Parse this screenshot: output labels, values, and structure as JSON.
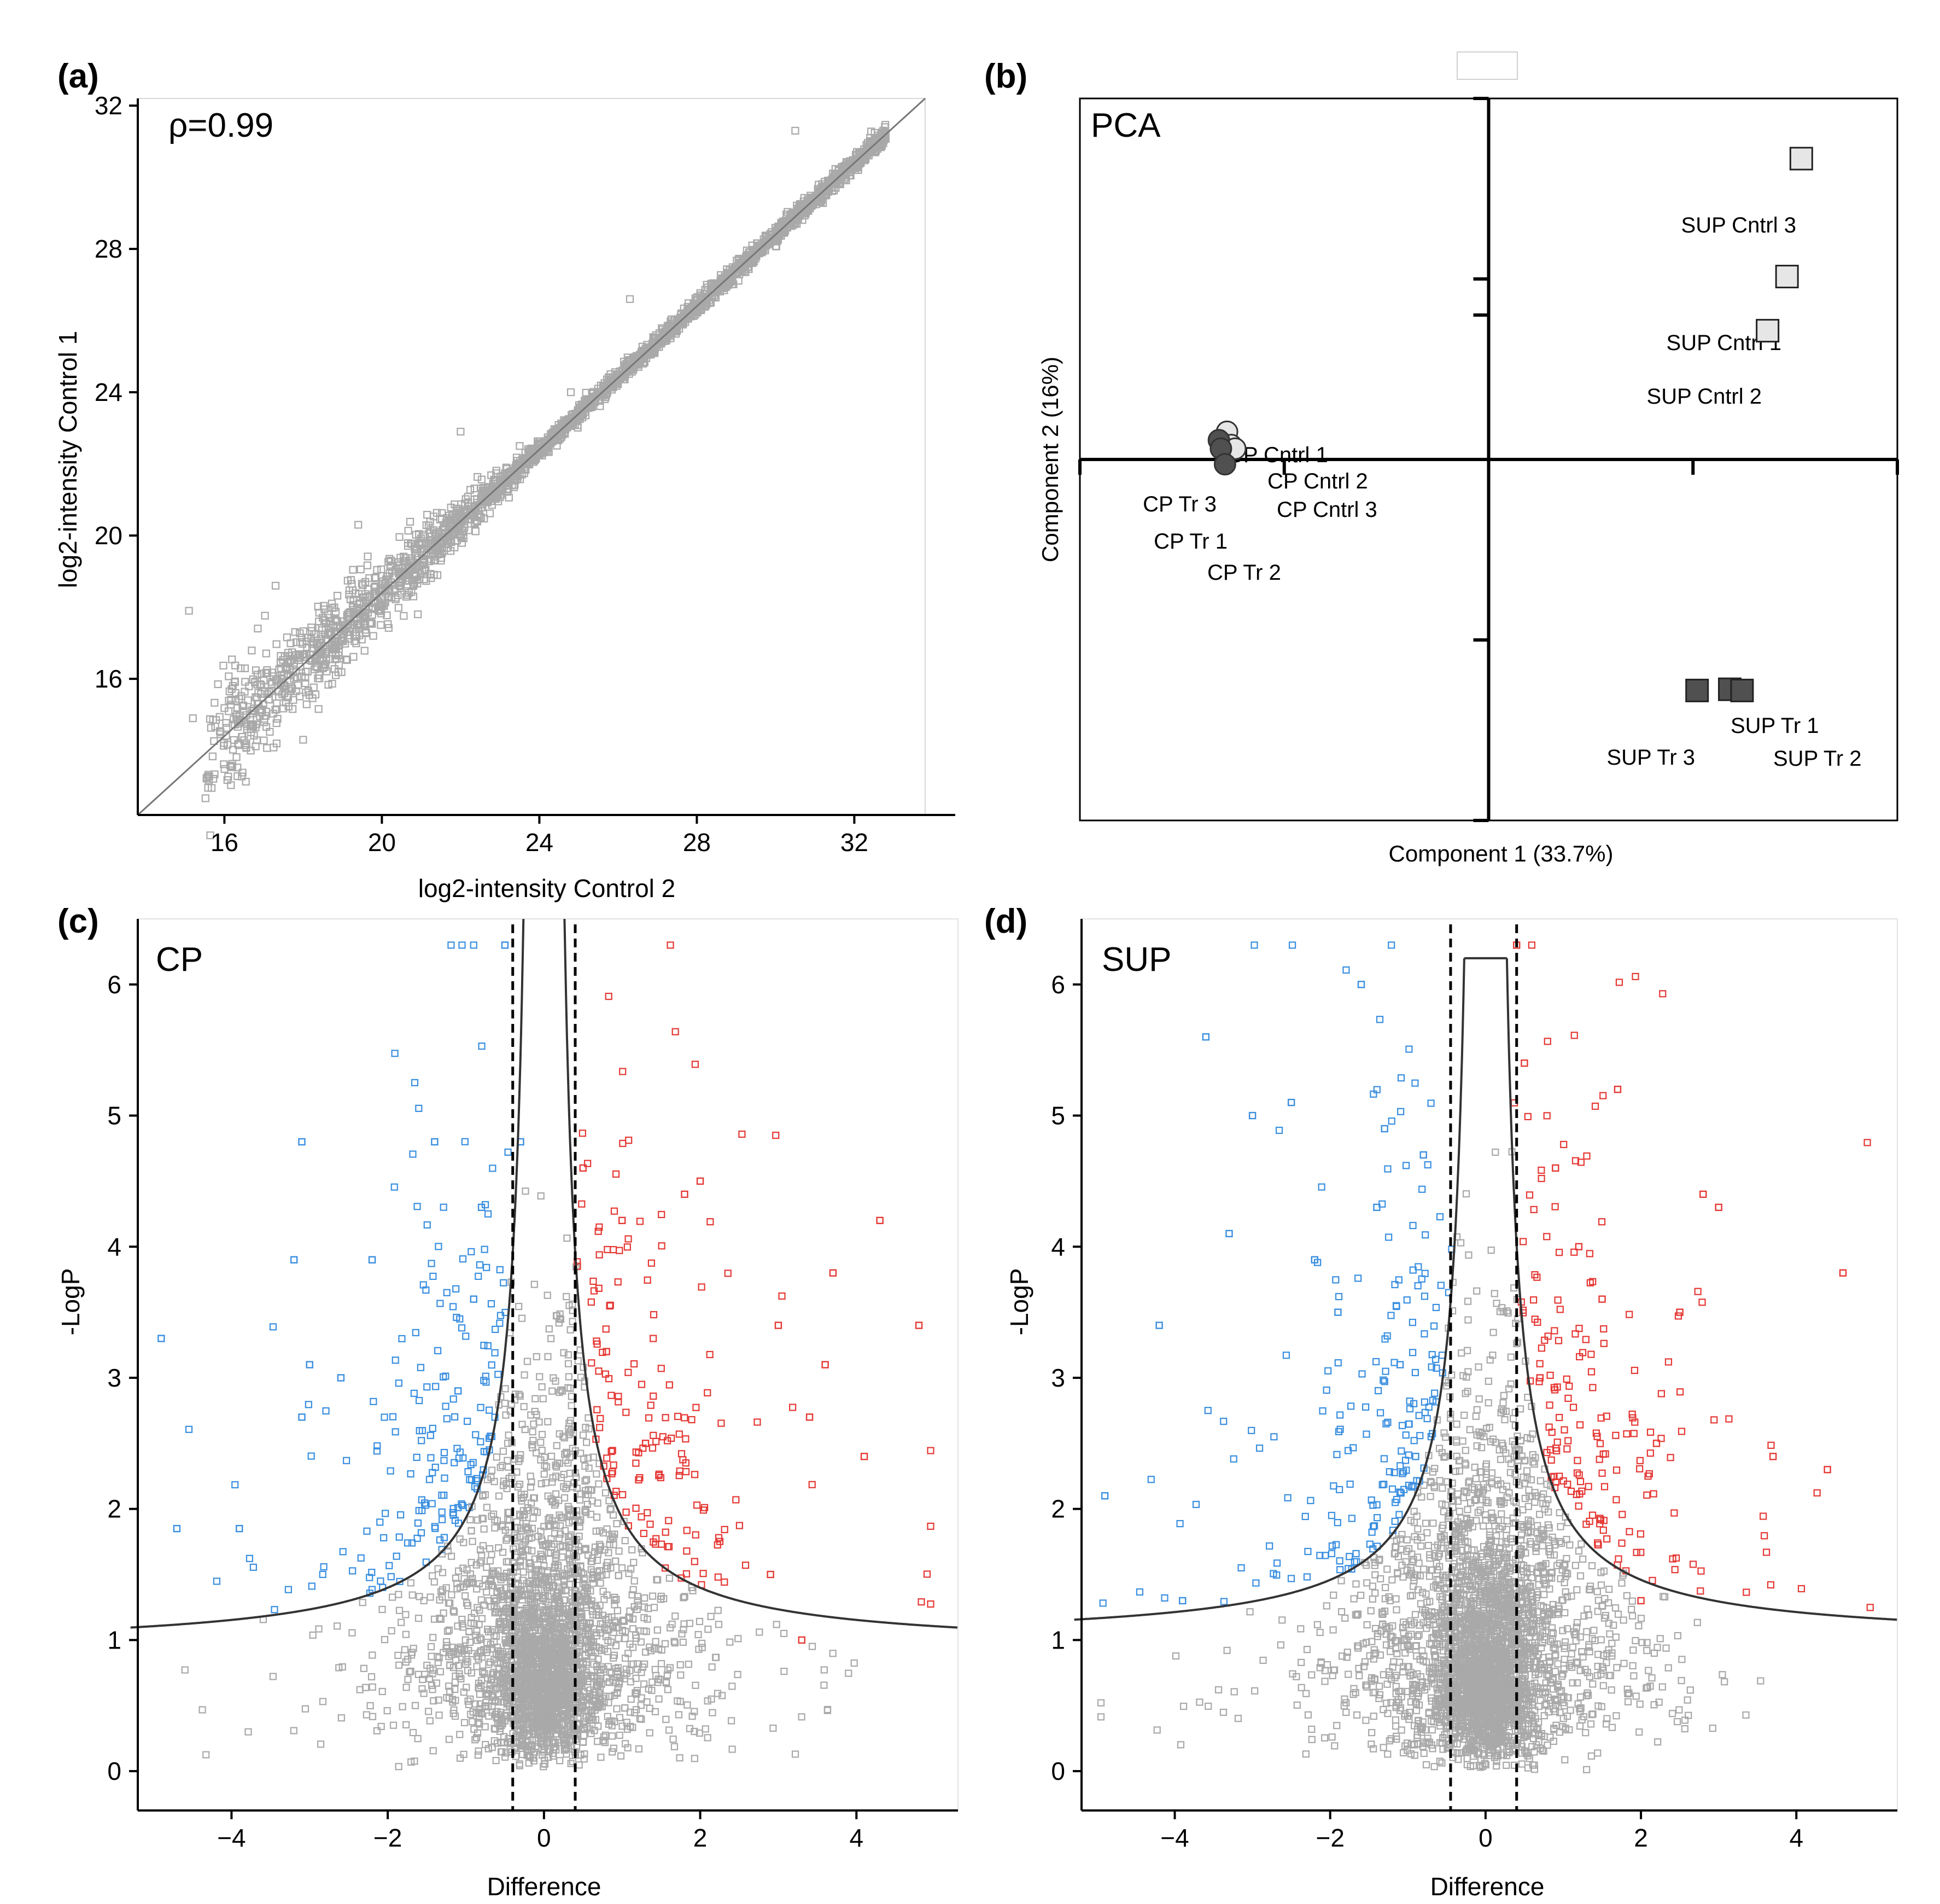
{
  "figure": {
    "panel_letters": [
      "(a)",
      "(b)",
      "(c)",
      "(d)"
    ]
  },
  "chart_data": [
    {
      "id": "a",
      "type": "scatter",
      "title": "",
      "annotation": "ρ=0.99",
      "xlabel": "log2-intensity Control 2",
      "ylabel": "log2-intensity Control 1",
      "xlim": [
        13.8,
        33.8
      ],
      "ylim": [
        12.2,
        32.2
      ],
      "xticks": [
        16,
        20,
        24,
        28,
        32
      ],
      "yticks": [
        16,
        20,
        24,
        28,
        32
      ],
      "point_color": "#a9a9a9",
      "line_color": "#777777",
      "fit_line": [
        [
          13.8,
          12.2
        ],
        [
          33.8,
          32.2
        ]
      ],
      "sample_points": [
        [
          15.1,
          17.9
        ],
        [
          15.2,
          14.9
        ],
        [
          16.6,
          15.4
        ],
        [
          17.3,
          18.6
        ],
        [
          18.4,
          17.6
        ],
        [
          18.0,
          14.3
        ],
        [
          22.0,
          22.9
        ],
        [
          21.5,
          19.3
        ],
        [
          19.4,
          20.3
        ],
        [
          30.5,
          31.3
        ],
        [
          32.4,
          31.1
        ],
        [
          24.8,
          24.0
        ],
        [
          20.8,
          18.3
        ],
        [
          23.5,
          22.5
        ],
        [
          26.3,
          26.6
        ]
      ]
    },
    {
      "id": "b",
      "type": "scatter",
      "title": "PCA",
      "xlabel": "Component 1 (33.7%)",
      "ylabel": "Component 2 (16%)",
      "xlim": [
        -40,
        40
      ],
      "ylim": [
        -30,
        30
      ],
      "points": [
        {
          "label": "CP Cntrl 1",
          "x": -25.6,
          "y": 2.3,
          "group": "CP Control",
          "marker": "circle",
          "color": "#e6e6e6"
        },
        {
          "label": "CP Cntrl 2",
          "x": -25.2,
          "y": 1.2,
          "group": "CP Control",
          "marker": "circle",
          "color": "#e6e6e6"
        },
        {
          "label": "CP Cntrl 3",
          "x": -24.8,
          "y": 0.9,
          "group": "CP Control",
          "marker": "circle",
          "color": "#e6e6e6"
        },
        {
          "label": "CP Tr 3",
          "x": -26.4,
          "y": 1.6,
          "group": "CP Treated",
          "marker": "circle",
          "color": "#505050"
        },
        {
          "label": "CP Tr 1",
          "x": -26.2,
          "y": 0.9,
          "group": "CP Treated",
          "marker": "circle",
          "color": "#505050"
        },
        {
          "label": "CP Tr 2",
          "x": -25.8,
          "y": -0.4,
          "group": "CP Treated",
          "marker": "circle",
          "color": "#505050"
        },
        {
          "label": "SUP Cntrl 3",
          "x": 30.6,
          "y": 25.0,
          "group": "SUP Control",
          "marker": "square",
          "color": "#e6e6e6"
        },
        {
          "label": "SUP Cntrl 1",
          "x": 29.2,
          "y": 15.2,
          "group": "SUP Control",
          "marker": "square",
          "color": "#e6e6e6"
        },
        {
          "label": "SUP Cntrl 2",
          "x": 27.3,
          "y": 10.7,
          "group": "SUP Control",
          "marker": "square",
          "color": "#e6e6e6"
        },
        {
          "label": "SUP Tr 1",
          "x": 23.6,
          "y": -19.1,
          "group": "SUP Treated",
          "marker": "square",
          "color": "#505050"
        },
        {
          "label": "SUP Tr 3",
          "x": 20.4,
          "y": -19.2,
          "group": "SUP Treated",
          "marker": "square",
          "color": "#505050"
        },
        {
          "label": "SUP Tr 2",
          "x": 24.8,
          "y": -19.2,
          "group": "SUP Treated",
          "marker": "square",
          "color": "#505050"
        }
      ]
    },
    {
      "id": "c",
      "type": "scatter",
      "title": "CP",
      "xlabel": "Difference",
      "ylabel": "-LogP",
      "xlim": [
        -5.2,
        5.3
      ],
      "ylim": [
        -0.3,
        6.5
      ],
      "xticks": [
        -4,
        -2,
        0,
        2,
        4
      ],
      "yticks": [
        0,
        1,
        2,
        3,
        4,
        5,
        6
      ],
      "fold_change_cutoffs": [
        -0.4,
        0.4
      ],
      "colors": {
        "down": "#3a8fe0",
        "up": "#e53935",
        "ns": "#a9a9a9"
      },
      "threshold_curve": {
        "s0": 0.1,
        "c": 0.91,
        "baseline": 0.92
      },
      "highlighted_points": [
        {
          "x": -4.9,
          "y": 3.3,
          "group": "down"
        },
        {
          "x": -4.7,
          "y": 1.85,
          "group": "down"
        },
        {
          "x": -3.9,
          "y": 1.85,
          "group": "down"
        },
        {
          "x": -3.1,
          "y": 4.8,
          "group": "down"
        },
        {
          "x": -3.2,
          "y": 3.9,
          "group": "down"
        },
        {
          "x": -3.0,
          "y": 3.1,
          "group": "down"
        },
        {
          "x": -3.1,
          "y": 2.7,
          "group": "down"
        },
        {
          "x": -2.6,
          "y": 3.0,
          "group": "down"
        },
        {
          "x": -2.2,
          "y": 3.9,
          "group": "down"
        },
        {
          "x": -1.4,
          "y": 4.8,
          "group": "down"
        },
        {
          "x": -0.8,
          "y": 4.3,
          "group": "down"
        },
        {
          "x": -0.5,
          "y": 6.3,
          "group": "down"
        },
        {
          "x": -0.3,
          "y": 4.8,
          "group": "down"
        },
        {
          "x": -0.9,
          "y": 3.6,
          "group": "down"
        },
        {
          "x": -1.1,
          "y": 2.9,
          "group": "down"
        },
        {
          "x": 0.5,
          "y": 4.6,
          "group": "up"
        },
        {
          "x": 1.0,
          "y": 4.2,
          "group": "up"
        },
        {
          "x": 2.0,
          "y": 4.5,
          "group": "up"
        },
        {
          "x": 1.8,
          "y": 4.4,
          "group": "up"
        },
        {
          "x": 4.3,
          "y": 4.2,
          "group": "up"
        },
        {
          "x": 4.8,
          "y": 3.4,
          "group": "up"
        },
        {
          "x": 3.0,
          "y": 3.4,
          "group": "up"
        },
        {
          "x": 3.7,
          "y": 3.8,
          "group": "up"
        },
        {
          "x": 3.6,
          "y": 3.1,
          "group": "up"
        },
        {
          "x": 4.1,
          "y": 2.4,
          "group": "up"
        },
        {
          "x": 3.4,
          "y": 2.7,
          "group": "up"
        },
        {
          "x": 3.3,
          "y": 1.0,
          "group": "up"
        },
        {
          "x": 2.9,
          "y": 1.5,
          "group": "up"
        },
        {
          "x": 1.3,
          "y": 2.5,
          "group": "up"
        },
        {
          "x": 0.8,
          "y": 3.2,
          "group": "up"
        }
      ]
    },
    {
      "id": "d",
      "type": "scatter",
      "title": "SUP",
      "xlabel": "Difference",
      "ylabel": "-LogP",
      "xlim": [
        -5.2,
        5.3
      ],
      "ylim": [
        -0.3,
        6.5
      ],
      "xticks": [
        -4,
        -2,
        0,
        2,
        4
      ],
      "yticks": [
        0,
        1,
        2,
        3,
        4,
        5,
        6
      ],
      "fold_change_cutoffs": [
        -0.45,
        0.4
      ],
      "colors": {
        "down": "#3a8fe0",
        "up": "#e53935",
        "ns": "#a9a9a9"
      },
      "threshold_curve": {
        "s0": 0.1,
        "c": 0.91,
        "baseline": 0.98,
        "cap": 6.2
      },
      "highlighted_points": [
        {
          "x": -4.9,
          "y": 2.1,
          "group": "down"
        },
        {
          "x": -4.2,
          "y": 3.4,
          "group": "down"
        },
        {
          "x": -3.6,
          "y": 5.6,
          "group": "down"
        },
        {
          "x": -3.3,
          "y": 4.1,
          "group": "down"
        },
        {
          "x": -3.0,
          "y": 5.0,
          "group": "down"
        },
        {
          "x": -2.5,
          "y": 5.1,
          "group": "down"
        },
        {
          "x": -1.6,
          "y": 6.0,
          "group": "down"
        },
        {
          "x": -1.3,
          "y": 4.9,
          "group": "down"
        },
        {
          "x": -0.8,
          "y": 4.7,
          "group": "down"
        },
        {
          "x": -3.9,
          "y": 1.3,
          "group": "down"
        },
        {
          "x": -2.2,
          "y": 3.9,
          "group": "down"
        },
        {
          "x": -1.9,
          "y": 3.5,
          "group": "down"
        },
        {
          "x": -1.4,
          "y": 4.3,
          "group": "down"
        },
        {
          "x": -1.1,
          "y": 3.1,
          "group": "down"
        },
        {
          "x": -0.9,
          "y": 2.4,
          "group": "down"
        },
        {
          "x": 0.4,
          "y": 6.3,
          "group": "up"
        },
        {
          "x": 0.5,
          "y": 5.4,
          "group": "up"
        },
        {
          "x": 1.7,
          "y": 5.2,
          "group": "up"
        },
        {
          "x": 2.8,
          "y": 4.4,
          "group": "up"
        },
        {
          "x": 3.0,
          "y": 4.3,
          "group": "up"
        },
        {
          "x": 4.6,
          "y": 3.8,
          "group": "up"
        },
        {
          "x": 4.4,
          "y": 2.3,
          "group": "up"
        },
        {
          "x": 3.7,
          "y": 2.4,
          "group": "up"
        },
        {
          "x": 2.5,
          "y": 3.5,
          "group": "up"
        },
        {
          "x": 2.2,
          "y": 2.5,
          "group": "up"
        },
        {
          "x": 1.2,
          "y": 4.0,
          "group": "up"
        },
        {
          "x": 1.5,
          "y": 3.6,
          "group": "up"
        },
        {
          "x": 0.9,
          "y": 4.6,
          "group": "up"
        },
        {
          "x": 2.0,
          "y": 1.3,
          "group": "up"
        },
        {
          "x": 0.7,
          "y": 3.0,
          "group": "up"
        }
      ]
    }
  ]
}
